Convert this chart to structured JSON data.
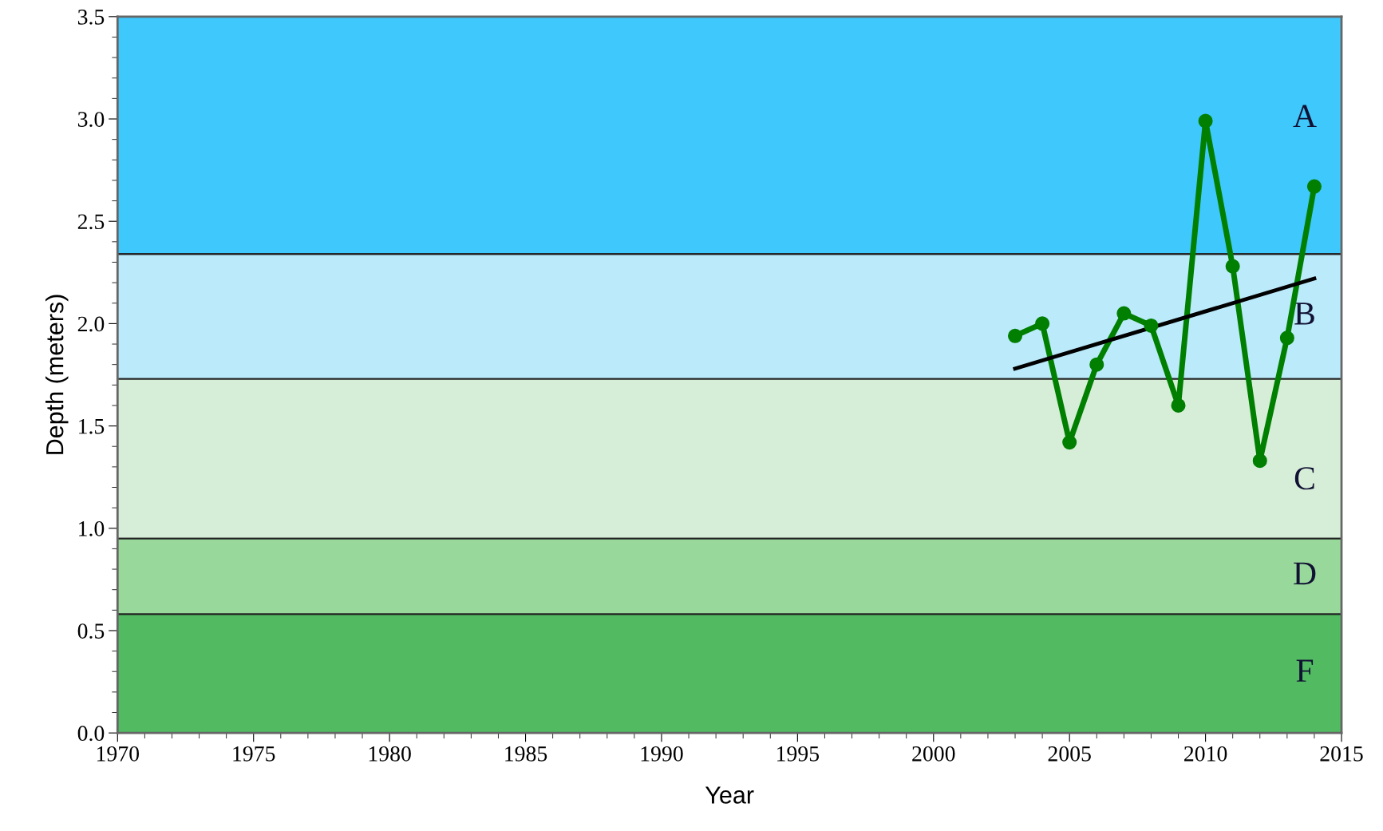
{
  "chart_data": {
    "type": "line",
    "xlabel": "Year",
    "ylabel": "Depth (meters)",
    "xlim": [
      1970,
      2015
    ],
    "xticks": [
      1970,
      1975,
      1980,
      1985,
      1990,
      1995,
      2000,
      2005,
      2010,
      2015
    ],
    "ylim": [
      0.0,
      3.5
    ],
    "yticks": [
      {
        "value": 0,
        "label": "0.0"
      },
      {
        "value": 0.5,
        "label": "0.5"
      },
      {
        "value": 1,
        "label": "1.0"
      },
      {
        "value": 1.5,
        "label": "1.5"
      },
      {
        "value": 2,
        "label": "2.0"
      },
      {
        "value": 2.5,
        "label": "2.5"
      },
      {
        "value": 3,
        "label": "3.0"
      },
      {
        "value": 3.5,
        "label": "3.5"
      }
    ],
    "grid": false,
    "marker": "circle",
    "line_style": "solid",
    "bands": [
      {
        "axis": "y",
        "from": 2.34,
        "to": 3.5,
        "label": "A",
        "color": "#3ec8fb"
      },
      {
        "axis": "y",
        "from": 1.73,
        "to": 2.34,
        "label": "B",
        "color": "#bbeafb"
      },
      {
        "axis": "y",
        "from": 0.95,
        "to": 1.73,
        "label": "C",
        "color": "#d6eed8"
      },
      {
        "axis": "y",
        "from": 0.58,
        "to": 0.95,
        "label": "D",
        "color": "#98d99b"
      },
      {
        "axis": "y",
        "from": 0.0,
        "to": 0.58,
        "label": "F",
        "color": "#52bb62"
      }
    ],
    "series": [
      {
        "color": "#007f00",
        "x": [
          2003,
          2004,
          2005,
          2006,
          2007,
          2008,
          2009,
          2010,
          2011,
          2012,
          2013,
          2014
        ],
        "values": [
          1.94,
          2.0,
          1.42,
          1.8,
          2.05,
          1.99,
          1.6,
          2.99,
          2.28,
          1.33,
          1.93,
          2.67
        ]
      },
      {
        "type": "line",
        "marker": "none",
        "color": "#000000",
        "x": [
          2003,
          2014
        ],
        "values": [
          1.78,
          2.22
        ]
      }
    ]
  }
}
